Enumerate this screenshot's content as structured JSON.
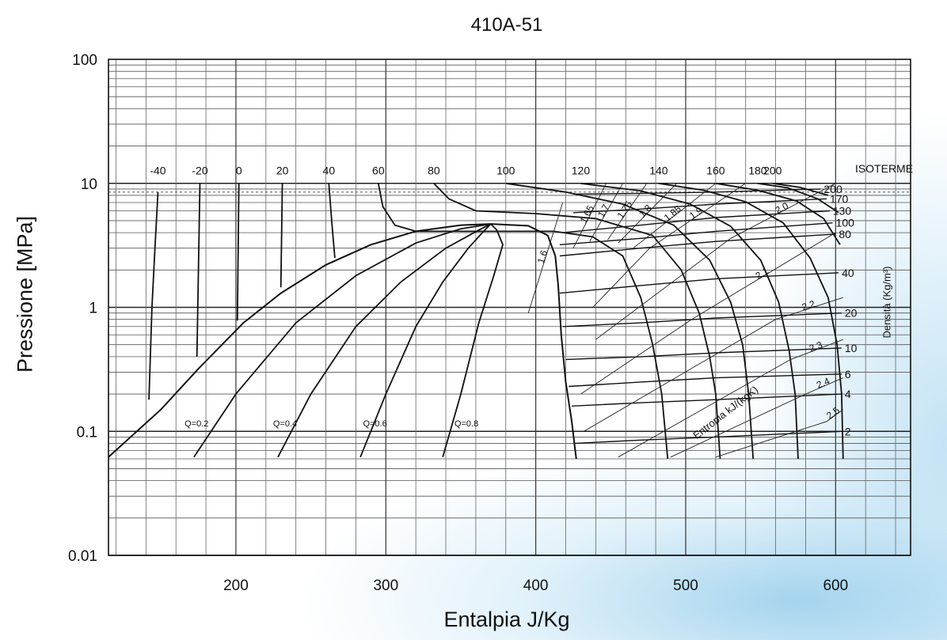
{
  "chart_data": {
    "type": "line",
    "title": "410A-51",
    "xlabel": "Entalpia J/Kg",
    "ylabel": "Pressione [MPa]",
    "xlim": [
      115,
      650
    ],
    "ylim": [
      0.01,
      100
    ],
    "yscale": "log",
    "grid": true,
    "x_ticks": [
      200,
      300,
      400,
      500,
      600
    ],
    "y_ticks": [
      {
        "value": 0.01,
        "label": "0.01"
      },
      {
        "value": 0.1,
        "label": "0.1"
      },
      {
        "value": 1,
        "label": "1"
      },
      {
        "value": 10,
        "label": "10"
      },
      {
        "value": 100,
        "label": "100"
      }
    ],
    "isotherm_header": "ISOTERME",
    "density_header": "Densità (Kg/m³)",
    "entropy_header": "Entropia kJ/(kgK)",
    "saturation_dome": {
      "liquid": [
        [
          115,
          0.062
        ],
        [
          150,
          0.15
        ],
        [
          175,
          0.32
        ],
        [
          205,
          0.75
        ],
        [
          230,
          1.3
        ],
        [
          260,
          2.2
        ],
        [
          290,
          3.2
        ],
        [
          320,
          4.1
        ],
        [
          350,
          4.6
        ],
        [
          370,
          4.7
        ]
      ],
      "vapor": [
        [
          370,
          4.7
        ],
        [
          395,
          4.55
        ],
        [
          408,
          3.8
        ],
        [
          413,
          2.6
        ],
        [
          415,
          1.5
        ],
        [
          417,
          0.6
        ],
        [
          420,
          0.25
        ],
        [
          424,
          0.12
        ],
        [
          426,
          0.075
        ],
        [
          427,
          0.06
        ]
      ]
    },
    "isotherms": [
      {
        "label": "-40",
        "points": [
          [
            148,
            8.5
          ],
          [
            146,
            3
          ],
          [
            144,
            1
          ],
          [
            142,
            0.18
          ]
        ]
      },
      {
        "label": "-20",
        "points": [
          [
            176,
            10
          ],
          [
            174,
            0.4
          ]
        ]
      },
      {
        "label": "0",
        "points": [
          [
            202,
            10
          ],
          [
            201,
            0.78
          ]
        ]
      },
      {
        "label": "20",
        "points": [
          [
            231,
            10
          ],
          [
            230,
            1.45
          ]
        ]
      },
      {
        "label": "40",
        "points": [
          [
            262,
            10
          ],
          [
            264,
            4.8
          ],
          [
            266,
            2.5
          ]
        ]
      },
      {
        "label": "60",
        "points": [
          [
            295,
            10
          ],
          [
            298,
            6.5
          ],
          [
            306,
            4.6
          ],
          [
            320,
            4.1
          ],
          [
            412,
            4.1
          ],
          [
            438,
            3.7
          ],
          [
            458,
            2.6
          ],
          [
            470,
            1.2
          ],
          [
            478,
            0.5
          ],
          [
            484,
            0.2
          ],
          [
            488,
            0.06
          ]
        ]
      },
      {
        "label": "80",
        "points": [
          [
            332,
            10
          ],
          [
            342,
            7.5
          ],
          [
            360,
            6.0
          ],
          [
            400,
            5.7
          ],
          [
            440,
            5.2
          ],
          [
            478,
            3.8
          ],
          [
            497,
            2
          ],
          [
            509,
            0.9
          ],
          [
            516,
            0.4
          ],
          [
            520,
            0.2
          ],
          [
            523,
            0.06
          ]
        ]
      },
      {
        "label": "100",
        "points": [
          [
            380,
            10
          ],
          [
            420,
            8.5
          ],
          [
            458,
            6.8
          ],
          [
            492,
            4.6
          ],
          [
            516,
            2.4
          ],
          [
            530,
            1.1
          ],
          [
            538,
            0.5
          ],
          [
            542,
            0.2
          ],
          [
            545,
            0.06
          ]
        ]
      },
      {
        "label": "120",
        "points": [
          [
            430,
            10
          ],
          [
            470,
            8.7
          ],
          [
            503,
            6.8
          ],
          [
            530,
            4.5
          ],
          [
            550,
            2.4
          ],
          [
            562,
            1.1
          ],
          [
            569,
            0.45
          ],
          [
            573,
            0.2
          ],
          [
            575,
            0.06
          ]
        ]
      },
      {
        "label": "140",
        "points": [
          [
            482,
            10
          ],
          [
            512,
            8.8
          ],
          [
            540,
            7.1
          ],
          [
            565,
            4.8
          ],
          [
            583,
            2.5
          ],
          [
            595,
            1.2
          ],
          [
            601,
            0.5
          ],
          [
            604,
            0.2
          ],
          [
            605,
            0.06
          ]
        ]
      },
      {
        "label": "160",
        "points": [
          [
            520,
            10
          ],
          [
            548,
            8.8
          ],
          [
            574,
            7.2
          ],
          [
            592,
            5.2
          ],
          [
            603,
            3.2
          ]
        ]
      },
      {
        "label": "180",
        "points": [
          [
            548,
            10
          ],
          [
            568,
            9.2
          ],
          [
            588,
            7.5
          ],
          [
            602,
            5.8
          ]
        ]
      },
      {
        "label": "200",
        "points": [
          [
            558,
            10
          ],
          [
            576,
            9.3
          ],
          [
            595,
            8.0
          ]
        ]
      }
    ],
    "quality_lines": [
      {
        "label": "Q=0.2",
        "points": [
          [
            172,
            0.062
          ],
          [
            200,
            0.2
          ],
          [
            240,
            0.75
          ],
          [
            280,
            1.8
          ],
          [
            320,
            3.3
          ],
          [
            350,
            4.3
          ],
          [
            370,
            4.7
          ]
        ]
      },
      {
        "label": "Q=0.4",
        "points": [
          [
            228,
            0.062
          ],
          [
            250,
            0.2
          ],
          [
            280,
            0.7
          ],
          [
            310,
            1.6
          ],
          [
            340,
            3.0
          ],
          [
            362,
            4.2
          ],
          [
            370,
            4.7
          ]
        ]
      },
      {
        "label": "Q=0.6",
        "points": [
          [
            283,
            0.062
          ],
          [
            300,
            0.2
          ],
          [
            320,
            0.7
          ],
          [
            338,
            1.6
          ],
          [
            355,
            3.0
          ],
          [
            366,
            4.2
          ],
          [
            370,
            4.7
          ]
        ]
      },
      {
        "label": "Q=0.8",
        "points": [
          [
            338,
            0.062
          ],
          [
            350,
            0.2
          ],
          [
            362,
            0.75
          ],
          [
            372,
            1.8
          ],
          [
            378,
            3.2
          ],
          [
            374,
            4.2
          ],
          [
            370,
            4.7
          ]
        ]
      }
    ],
    "density_lines": [
      {
        "label": "200",
        "points": [
          [
            425,
            8.2
          ],
          [
            470,
            8.3
          ],
          [
            520,
            8.5
          ],
          [
            590,
            9.0
          ]
        ]
      },
      {
        "label": "170",
        "points": [
          [
            425,
            5.8
          ],
          [
            470,
            6.2
          ],
          [
            520,
            6.8
          ],
          [
            594,
            7.5
          ]
        ]
      },
      {
        "label": "130",
        "points": [
          [
            418,
            4.0
          ],
          [
            470,
            4.6
          ],
          [
            520,
            5.3
          ],
          [
            596,
            6.0
          ]
        ]
      },
      {
        "label": "100",
        "points": [
          [
            416,
            3.2
          ],
          [
            470,
            3.6
          ],
          [
            520,
            4.1
          ],
          [
            598,
            4.8
          ]
        ]
      },
      {
        "label": "80",
        "points": [
          [
            416,
            2.6
          ],
          [
            470,
            3.0
          ],
          [
            520,
            3.4
          ],
          [
            600,
            3.9
          ]
        ]
      },
      {
        "label": "40",
        "points": [
          [
            416,
            1.3
          ],
          [
            470,
            1.5
          ],
          [
            520,
            1.7
          ],
          [
            602,
            1.9
          ]
        ]
      },
      {
        "label": "20",
        "points": [
          [
            418,
            0.7
          ],
          [
            470,
            0.75
          ],
          [
            520,
            0.82
          ],
          [
            604,
            0.9
          ]
        ]
      },
      {
        "label": "10",
        "points": [
          [
            420,
            0.38
          ],
          [
            470,
            0.4
          ],
          [
            520,
            0.43
          ],
          [
            604,
            0.47
          ]
        ]
      },
      {
        "label": "6",
        "points": [
          [
            422,
            0.23
          ],
          [
            470,
            0.25
          ],
          [
            520,
            0.27
          ],
          [
            604,
            0.29
          ]
        ]
      },
      {
        "label": "4",
        "points": [
          [
            424,
            0.16
          ],
          [
            470,
            0.17
          ],
          [
            520,
            0.18
          ],
          [
            604,
            0.2
          ]
        ]
      },
      {
        "label": "2",
        "points": [
          [
            426,
            0.08
          ],
          [
            470,
            0.085
          ],
          [
            520,
            0.09
          ],
          [
            604,
            0.1
          ]
        ]
      }
    ],
    "entropy_lines": [
      {
        "label": "1.6",
        "points": [
          [
            395,
            0.9
          ],
          [
            418,
            7.0
          ]
        ]
      },
      {
        "label": "1.65",
        "points": [
          [
            425,
            3.0
          ],
          [
            447,
            10
          ]
        ]
      },
      {
        "label": "1.7",
        "points": [
          [
            436,
            3.4
          ],
          [
            458,
            10
          ]
        ]
      },
      {
        "label": "1.75",
        "points": [
          [
            448,
            3.5
          ],
          [
            474,
            10
          ]
        ]
      },
      {
        "label": "1.8",
        "points": [
          [
            455,
            3.3
          ],
          [
            494,
            10
          ]
        ]
      },
      {
        "label": "1.85",
        "points": [
          [
            465,
            3.0
          ],
          [
            520,
            10
          ]
        ]
      },
      {
        "label": "1.9",
        "points": [
          [
            438,
            1.0
          ],
          [
            476,
            3.0
          ],
          [
            540,
            10
          ]
        ]
      },
      {
        "label": "2.0",
        "points": [
          [
            440,
            0.55
          ],
          [
            530,
            3.6
          ],
          [
            600,
            10
          ]
        ]
      },
      {
        "label": "2.1",
        "points": [
          [
            430,
            0.2
          ],
          [
            504,
            0.8
          ],
          [
            600,
            4.0
          ]
        ]
      },
      {
        "label": "2.2",
        "points": [
          [
            432,
            0.1
          ],
          [
            560,
            0.8
          ],
          [
            605,
            1.2
          ]
        ]
      },
      {
        "label": "2.3",
        "points": [
          [
            455,
            0.062
          ],
          [
            570,
            0.38
          ],
          [
            605,
            0.55
          ]
        ]
      },
      {
        "label": "2.4",
        "points": [
          [
            490,
            0.062
          ],
          [
            580,
            0.2
          ],
          [
            605,
            0.27
          ]
        ]
      },
      {
        "label": "2.5",
        "points": [
          [
            520,
            0.062
          ],
          [
            594,
            0.12
          ],
          [
            605,
            0.15
          ]
        ]
      }
    ]
  }
}
